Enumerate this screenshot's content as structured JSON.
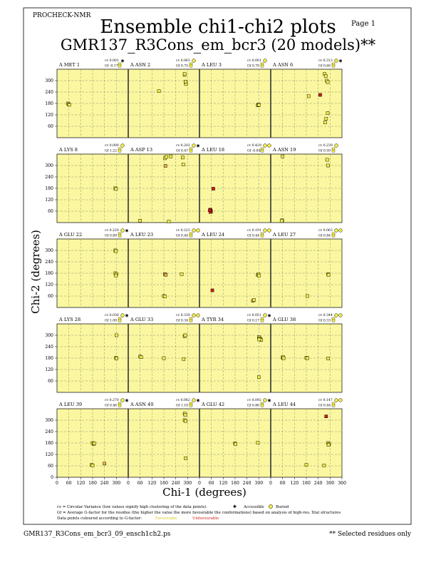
{
  "header": {
    "program": "PROCHECK-NMR",
    "page": "Page  1",
    "title": "Ensemble chi1-chi2 plots",
    "subtitle": "GMR137_R3Cons_em_bcr3 (20 models)**"
  },
  "footer": {
    "filename": "GMR137_R3Cons_em_bcr3_09_ensch1ch2.ps",
    "note": "** Selected residues only",
    "legend_cv": "cv = Circular Variance (low values signify high clustering of the data points).",
    "legend_accessible": "Accessible",
    "legend_buried": "Buried",
    "legend_gf": "Gf = Average G-factor for the residue (the higher the value the more favourable the conformations) based on analysis of high-res. Xtal structures",
    "legend_colour": "Data points coloured according to G-factor:",
    "legend_fav": "Favourable",
    "legend_unfav": "Unfavourable"
  },
  "colors": {
    "panel_bg": "#faf7a0",
    "favourable": "#f2ee44",
    "mid": "#e6b048",
    "unfavourable": "#cc1f10",
    "grid": "#8a8a6a"
  },
  "chart_data": {
    "type": "scatter",
    "xlabel": "Chi-1 (degrees)",
    "ylabel": "Chi-2 (degrees)",
    "xlim": [
      0,
      360
    ],
    "ylim": [
      0,
      360
    ],
    "xticks": [
      0,
      60,
      120,
      180,
      240,
      300,
      360
    ],
    "yticks": [
      60,
      120,
      180,
      240,
      300
    ],
    "panel_yticks": [
      0,
      60,
      120,
      180,
      240,
      300
    ],
    "cells": [
      [
        {
          "label": "A MET 1",
          "cv": "cv 0.001",
          "gf": "Gf -0.17",
          "acc": "A",
          "pts": [
            [
              55,
              180,
              1
            ],
            [
              60,
              175,
              1
            ],
            [
              62,
              173,
              1
            ]
          ]
        },
        {
          "label": "A ASN 2",
          "cv": "cv 0.063",
          "gf": "Gf 0.75",
          "acc": "B",
          "pts": [
            [
              155,
              245,
              1
            ],
            [
              285,
              330,
              1
            ],
            [
              285,
              335,
              1
            ],
            [
              290,
              290,
              1
            ],
            [
              292,
              282,
              1
            ],
            [
              290,
              295,
              1
            ]
          ]
        },
        {
          "label": "A LEU 3",
          "cv": "cv 0.001",
          "gf": "Gf 0.78",
          "acc": "B",
          "pts": [
            [
              295,
              170,
              1
            ],
            [
              298,
              175,
              1
            ],
            [
              300,
              172,
              1
            ]
          ]
        },
        {
          "label": "A ASN 6",
          "cv": "cv 0.313",
          "gf": "Gf 0.60",
          "acc": "BA",
          "pts": [
            [
              192,
              218,
              1
            ],
            [
              250,
              225,
              3
            ],
            [
              272,
              335,
              1
            ],
            [
              278,
              325,
              1
            ],
            [
              283,
              300,
              1
            ],
            [
              288,
              292,
              1
            ],
            [
              288,
              130,
              1
            ],
            [
              280,
              100,
              1
            ],
            [
              275,
              80,
              1
            ]
          ]
        }
      ],
      [
        {
          "label": "A LYS 8",
          "cv": "cv 0.000",
          "gf": "Gf 1.22",
          "acc": "B",
          "pts": [
            [
              295,
              180,
              1
            ],
            [
              298,
              177,
              1
            ]
          ]
        },
        {
          "label": "A ASP 13",
          "cv": "cv 0.202",
          "gf": "Gf 0.47",
          "acc": "BA",
          "pts": [
            [
              60,
              10,
              1
            ],
            [
              185,
              338,
              1
            ],
            [
              192,
              345,
              1
            ],
            [
              215,
              348,
              1
            ],
            [
              188,
              298,
              2
            ],
            [
              275,
              342,
              1
            ],
            [
              278,
              305,
              1
            ],
            [
              205,
              5,
              1
            ]
          ]
        },
        {
          "label": "A LEU 18",
          "cv": "cv 0.429",
          "gf": "Gf -0.84",
          "acc": "BB",
          "pts": [
            [
              55,
              68,
              3
            ],
            [
              57,
              62,
              3
            ],
            [
              58,
              58,
              3
            ],
            [
              55,
              56,
              3
            ],
            [
              52,
              65,
              3
            ],
            [
              70,
              178,
              3
            ]
          ]
        },
        {
          "label": "A ASN 19",
          "cv": "cv 0.239",
          "gf": "Gf 0.59",
          "acc": "B",
          "pts": [
            [
              60,
              348,
              1
            ],
            [
              58,
              12,
              1
            ],
            [
              55,
              8,
              1
            ],
            [
              285,
              330,
              1
            ],
            [
              290,
              300,
              1
            ]
          ]
        }
      ],
      [
        {
          "label": "A GLU 22",
          "cv": "cv 0.220",
          "gf": "Gf 0.89",
          "acc": "BA",
          "pts": [
            [
              295,
              300,
              1
            ],
            [
              298,
              296,
              1
            ],
            [
              295,
              180,
              1
            ],
            [
              300,
              175,
              1
            ],
            [
              298,
              168,
              1
            ]
          ]
        },
        {
          "label": "A LEU 23",
          "cv": "cv 0.223",
          "gf": "Gf 0.44",
          "acc": "BB",
          "pts": [
            [
              185,
              175,
              2
            ],
            [
              190,
              172,
              2
            ],
            [
              180,
              60,
              1
            ],
            [
              185,
              58,
              1
            ],
            [
              270,
              175,
              1
            ]
          ]
        },
        {
          "label": "A LEU 24",
          "cv": "cv 0.191",
          "gf": "Gf 0.44",
          "acc": "BB",
          "pts": [
            [
              65,
              90,
              3
            ],
            [
              295,
              170,
              1
            ],
            [
              298,
              175,
              1
            ],
            [
              300,
              168,
              1
            ],
            [
              270,
              35,
              2
            ],
            [
              275,
              40,
              1
            ]
          ]
        },
        {
          "label": "A LEU 27",
          "cv": "cv 0.063",
          "gf": "Gf 0.84",
          "acc": "BB",
          "pts": [
            [
              290,
              175,
              1
            ],
            [
              292,
              172,
              1
            ],
            [
              185,
              60,
              1
            ]
          ]
        }
      ],
      [
        {
          "label": "A LYS 28",
          "cv": "cv 0.036",
          "gf": "Gf 1.09",
          "acc": "BA",
          "pts": [
            [
              300,
              300,
              1
            ],
            [
              298,
              182,
              1
            ],
            [
              300,
              178,
              1
            ]
          ]
        },
        {
          "label": "A GLU 33",
          "cv": "cv 0.330",
          "gf": "Gf 0.34",
          "acc": "BB",
          "pts": [
            [
              60,
              188,
              1
            ],
            [
              65,
              185,
              1
            ],
            [
              180,
              180,
              1
            ],
            [
              285,
              295,
              1
            ],
            [
              288,
              300,
              1
            ],
            [
              280,
              175,
              1
            ]
          ]
        },
        {
          "label": "A TYR 34",
          "cv": "cv 0.051",
          "gf": "Gf 0.17",
          "acc": "BA",
          "pts": [
            [
              300,
              290,
              1
            ],
            [
              305,
              285,
              1
            ],
            [
              308,
              280,
              1
            ],
            [
              312,
              275,
              1
            ],
            [
              302,
              278,
              1
            ],
            [
              300,
              80,
              1
            ]
          ]
        },
        {
          "label": "A GLU 38",
          "cv": "cv 0.344",
          "gf": "Gf 0.33",
          "acc": "BB",
          "pts": [
            [
              60,
              182,
              1
            ],
            [
              62,
              186,
              1
            ],
            [
              65,
              180,
              1
            ],
            [
              180,
              182,
              1
            ],
            [
              185,
              180,
              1
            ],
            [
              290,
              178,
              1
            ]
          ]
        }
      ],
      [
        {
          "label": "A LEU 39",
          "cv": "cv 0.270",
          "gf": "Gf 0.46",
          "acc": "BA",
          "pts": [
            [
              180,
              180,
              1
            ],
            [
              185,
              175,
              1
            ],
            [
              188,
              178,
              1
            ],
            [
              175,
              65,
              1
            ],
            [
              180,
              62,
              1
            ],
            [
              240,
              72,
              2
            ]
          ]
        },
        {
          "label": "A ASN 40",
          "cv": "cv 0.062",
          "gf": "Gf 1.18",
          "acc": "BA",
          "pts": [
            [
              285,
              335,
              1
            ],
            [
              288,
              328,
              1
            ],
            [
              285,
              300,
              1
            ],
            [
              290,
              296,
              1
            ],
            [
              290,
              100,
              1
            ]
          ]
        },
        {
          "label": "A GLU 42",
          "cv": "cv 0.092",
          "gf": "Gf 0.86",
          "acc": "BA",
          "pts": [
            [
              180,
              178,
              1
            ],
            [
              182,
              175,
              1
            ],
            [
              295,
              182,
              1
            ]
          ]
        },
        {
          "label": "A LEU 44",
          "cv": "cv 0.147",
          "gf": "Gf 0.44",
          "acc": "BB",
          "pts": [
            [
              280,
              320,
              3
            ],
            [
              290,
              180,
              1
            ],
            [
              295,
              175,
              1
            ],
            [
              292,
              170,
              1
            ],
            [
              180,
              65,
              1
            ],
            [
              270,
              62,
              1
            ]
          ]
        }
      ]
    ]
  }
}
